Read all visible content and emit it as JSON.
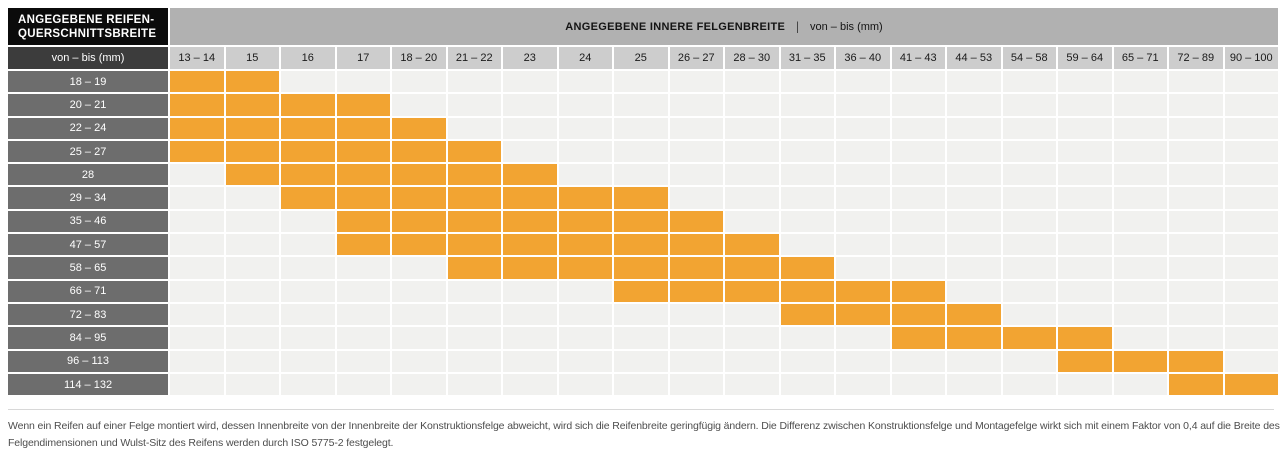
{
  "colors": {
    "compatible_orange": "#F2A432",
    "band_gray": "#B1B1B1",
    "column_header_gray": "#CDCDCD",
    "unit_row_dark": "#3C3C3C",
    "row_label_gray": "#6D6D6D",
    "empty_cell_gray": "#F1F1EF",
    "title_box_black": "#0B0B0B"
  },
  "corner": {
    "title_line1": "ANGEGEBENE REIFEN-",
    "title_line2": "QUERSCHNITTSBREITE",
    "unit_label": "von – bis (mm)"
  },
  "band": {
    "title_bold": "ANGEGEBENE INNERE FELGENBREITE",
    "separator": "|",
    "title_unit": "von – bis (mm)"
  },
  "chart_data": {
    "type": "heatmap",
    "title": "ANGEGEBENE INNERE FELGENBREITE | von – bis (mm)",
    "x_axis_label": "ANGEGEBENE INNERE FELGENBREITE von – bis (mm)",
    "y_axis_label": "ANGEGEBENE REIFEN-QUERSCHNITTSBREITE von – bis (mm)",
    "columns": [
      "13 – 14",
      "15",
      "16",
      "17",
      "18 – 20",
      "21 – 22",
      "23",
      "24",
      "25",
      "26 – 27",
      "28 – 30",
      "31 – 35",
      "36 – 40",
      "41 – 43",
      "44 – 53",
      "54 – 58",
      "59 – 64",
      "65 – 71",
      "72 – 89",
      "90 – 100"
    ],
    "rows": [
      {
        "tire_width": "18 – 19",
        "rim_widths": [
          "13 – 14",
          "15"
        ]
      },
      {
        "tire_width": "20 – 21",
        "rim_widths": [
          "13 – 14",
          "15",
          "16",
          "17"
        ]
      },
      {
        "tire_width": "22 – 24",
        "rim_widths": [
          "13 – 14",
          "15",
          "16",
          "17",
          "18 – 20"
        ]
      },
      {
        "tire_width": "25 – 27",
        "rim_widths": [
          "13 – 14",
          "15",
          "16",
          "17",
          "18 – 20",
          "21 – 22"
        ]
      },
      {
        "tire_width": "28",
        "rim_widths": [
          "15",
          "16",
          "17",
          "18 – 20",
          "21 – 22",
          "23"
        ]
      },
      {
        "tire_width": "29 – 34",
        "rim_widths": [
          "16",
          "17",
          "18 – 20",
          "21 – 22",
          "23",
          "24",
          "25"
        ]
      },
      {
        "tire_width": "35 – 46",
        "rim_widths": [
          "17",
          "18 – 20",
          "21 – 22",
          "23",
          "24",
          "25",
          "26 – 27"
        ]
      },
      {
        "tire_width": "47 – 57",
        "rim_widths": [
          "17",
          "18 – 20",
          "21 – 22",
          "23",
          "24",
          "25",
          "26 – 27",
          "28 – 30"
        ]
      },
      {
        "tire_width": "58 – 65",
        "rim_widths": [
          "21 – 22",
          "23",
          "24",
          "25",
          "26 – 27",
          "28 – 30",
          "31 – 35"
        ]
      },
      {
        "tire_width": "66 – 71",
        "rim_widths": [
          "25",
          "26 – 27",
          "28 – 30",
          "31 – 35",
          "36 – 40",
          "41 – 43"
        ]
      },
      {
        "tire_width": "72 – 83",
        "rim_widths": [
          "31 – 35",
          "36 – 40",
          "41 – 43",
          "44 – 53"
        ]
      },
      {
        "tire_width": "84 – 95",
        "rim_widths": [
          "41 – 43",
          "44 – 53",
          "54 – 58",
          "59 – 64"
        ]
      },
      {
        "tire_width": "96 – 113",
        "rim_widths": [
          "59 – 64",
          "65 – 71",
          "72 – 89"
        ]
      },
      {
        "tire_width": "114 – 132",
        "rim_widths": [
          "72 – 89",
          "90 – 100"
        ]
      }
    ]
  },
  "footer": {
    "line1": "Wenn ein Reifen auf einer Felge montiert wird, dessen Innenbreite von der Innenbreite der Konstruktionsfelge abweicht, wird sich die Reifenbreite geringfügig ändern. Die Differenz zwischen Konstruktionsfelge und Montagefelge wirkt sich mit einem Faktor von 0,4 auf die Breite des Reifens aus.",
    "line2": "Felgendimensionen und Wulst-Sitz des Reifens werden durch ISO 5775-2 festgelegt."
  }
}
